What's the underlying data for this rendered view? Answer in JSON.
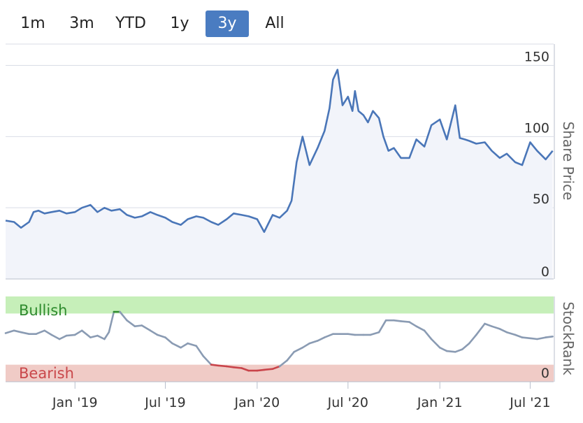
{
  "range_buttons": [
    {
      "label": "1m",
      "active": false
    },
    {
      "label": "3m",
      "active": false
    },
    {
      "label": "YTD",
      "active": false
    },
    {
      "label": "1y",
      "active": false
    },
    {
      "label": "3y",
      "active": true
    },
    {
      "label": "All",
      "active": false
    }
  ],
  "colors": {
    "price_line": "#4a76b8",
    "price_fill": "#f2f4fa",
    "grid": "#d9dde6",
    "axis": "#b9bfcc",
    "bullish_band": "#c6efb9",
    "bearish_band": "#f0cbc6",
    "bullish_text": "#2e8b2e",
    "bearish_text": "#c9474a",
    "rank_line": "#8a9bb3",
    "rank_bullish": "#2e8b2e",
    "rank_bearish": "#c9444a"
  },
  "chart_data": [
    {
      "type": "area",
      "ylabel": "Share Price",
      "ylim": [
        0,
        165
      ],
      "yticks": [
        0,
        50,
        100,
        150
      ],
      "grid": true,
      "series": [
        {
          "x": [
            "2018-08-15",
            "2018-09-01",
            "2018-09-15",
            "2018-10-01",
            "2018-10-10",
            "2018-10-20",
            "2018-11-01",
            "2018-11-15",
            "2018-12-01",
            "2018-12-15",
            "2019-01-01",
            "2019-01-15",
            "2019-02-01",
            "2019-02-15",
            "2019-03-01",
            "2019-03-15",
            "2019-04-01",
            "2019-04-15",
            "2019-05-01",
            "2019-05-15",
            "2019-06-01",
            "2019-06-15",
            "2019-07-01",
            "2019-07-15",
            "2019-08-01",
            "2019-08-15",
            "2019-09-01",
            "2019-09-15",
            "2019-10-01",
            "2019-10-15",
            "2019-11-01",
            "2019-11-15",
            "2019-12-01",
            "2019-12-15",
            "2020-01-01",
            "2020-01-15",
            "2020-02-01",
            "2020-02-15",
            "2020-03-01",
            "2020-03-10",
            "2020-03-20",
            "2020-04-01",
            "2020-04-15",
            "2020-05-01",
            "2020-05-15",
            "2020-05-25",
            "2020-06-01",
            "2020-06-10",
            "2020-06-20",
            "2020-07-01",
            "2020-07-10",
            "2020-07-15",
            "2020-07-22",
            "2020-08-01",
            "2020-08-10",
            "2020-08-20",
            "2020-09-01",
            "2020-09-10",
            "2020-09-20",
            "2020-10-01",
            "2020-10-15",
            "2020-11-01",
            "2020-11-15",
            "2020-12-01",
            "2020-12-15",
            "2021-01-01",
            "2021-01-15",
            "2021-02-01",
            "2021-02-10",
            "2021-02-20",
            "2021-03-01",
            "2021-03-15",
            "2021-04-01",
            "2021-04-15",
            "2021-05-01",
            "2021-05-15",
            "2021-06-01",
            "2021-06-15",
            "2021-07-01",
            "2021-07-15",
            "2021-08-01",
            "2021-08-15"
          ],
          "y": [
            41,
            40,
            36,
            40,
            47,
            48,
            46,
            47,
            48,
            46,
            47,
            50,
            52,
            47,
            50,
            48,
            49,
            45,
            43,
            44,
            47,
            45,
            43,
            40,
            38,
            42,
            44,
            43,
            40,
            38,
            42,
            46,
            45,
            44,
            42,
            33,
            45,
            43,
            48,
            55,
            82,
            100,
            80,
            92,
            104,
            120,
            140,
            147,
            122,
            128,
            118,
            132,
            118,
            115,
            110,
            118,
            113,
            100,
            90,
            92,
            85,
            85,
            98,
            93,
            108,
            112,
            98,
            122,
            99,
            98,
            97,
            95,
            96,
            90,
            85,
            88,
            82,
            80,
            96,
            90,
            84,
            90
          ]
        }
      ]
    },
    {
      "type": "line",
      "ylabel": "StockRank",
      "ylim": [
        0,
        100
      ],
      "yticks": [
        0
      ],
      "zones": [
        {
          "name": "Bullish",
          "from": 80,
          "to": 100
        },
        {
          "name": "Bearish",
          "from": 0,
          "to": 20
        }
      ],
      "x_ticks": [
        "Jan '19",
        "Jul '19",
        "Jan '20",
        "Jul '20",
        "Jan '21",
        "Jul '21"
      ],
      "series": [
        {
          "x": [
            "2018-08-15",
            "2018-09-01",
            "2018-09-15",
            "2018-10-01",
            "2018-10-15",
            "2018-11-01",
            "2018-11-15",
            "2018-12-01",
            "2018-12-15",
            "2019-01-01",
            "2019-01-15",
            "2019-02-01",
            "2019-02-15",
            "2019-03-01",
            "2019-03-10",
            "2019-03-20",
            "2019-04-01",
            "2019-04-15",
            "2019-05-01",
            "2019-05-15",
            "2019-06-01",
            "2019-06-15",
            "2019-07-01",
            "2019-07-15",
            "2019-08-01",
            "2019-08-15",
            "2019-09-01",
            "2019-09-15",
            "2019-10-01",
            "2019-10-15",
            "2019-11-01",
            "2019-11-15",
            "2019-12-01",
            "2019-12-15",
            "2020-01-01",
            "2020-01-15",
            "2020-02-01",
            "2020-02-15",
            "2020-03-01",
            "2020-03-15",
            "2020-04-01",
            "2020-04-15",
            "2020-05-01",
            "2020-05-15",
            "2020-06-01",
            "2020-06-15",
            "2020-07-01",
            "2020-07-15",
            "2020-08-01",
            "2020-08-15",
            "2020-09-01",
            "2020-09-15",
            "2020-10-01",
            "2020-10-15",
            "2020-11-01",
            "2020-11-15",
            "2020-12-01",
            "2020-12-15",
            "2021-01-01",
            "2021-01-15",
            "2021-02-01",
            "2021-02-15",
            "2021-03-01",
            "2021-03-15",
            "2021-04-01",
            "2021-04-15",
            "2021-05-01",
            "2021-05-15",
            "2021-06-01",
            "2021-06-15",
            "2021-07-01",
            "2021-07-15",
            "2021-08-01",
            "2021-08-15"
          ],
          "y": [
            57,
            60,
            58,
            56,
            56,
            60,
            55,
            50,
            54,
            55,
            60,
            52,
            54,
            50,
            58,
            82,
            82,
            72,
            65,
            66,
            60,
            55,
            52,
            45,
            40,
            45,
            42,
            30,
            20,
            19,
            18,
            17,
            16,
            13,
            13,
            14,
            15,
            18,
            25,
            35,
            40,
            45,
            48,
            52,
            56,
            56,
            56,
            55,
            55,
            55,
            58,
            72,
            72,
            71,
            70,
            65,
            60,
            50,
            40,
            36,
            35,
            38,
            45,
            55,
            68,
            65,
            62,
            58,
            55,
            52,
            51,
            50,
            52,
            53
          ]
        }
      ]
    }
  ]
}
